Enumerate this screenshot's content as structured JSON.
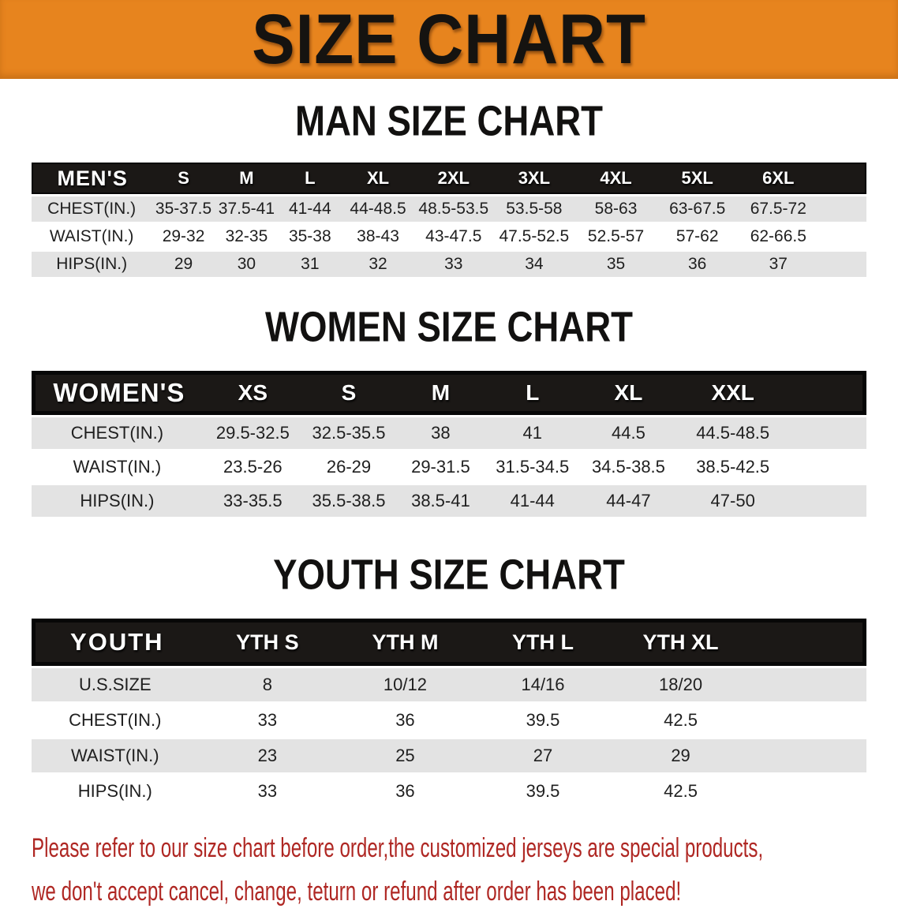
{
  "banner": {
    "title": "SIZE CHART"
  },
  "sections": [
    {
      "id": "men",
      "heading": "MAN SIZE CHART",
      "header_label": "MEN'S",
      "columns": [
        "S",
        "M",
        "L",
        "XL",
        "2XL",
        "3XL",
        "4XL",
        "5XL",
        "6XL"
      ],
      "rows": [
        {
          "label": "CHEST(IN.)",
          "values": [
            "35-37.5",
            "37.5-41",
            "41-44",
            "44-48.5",
            "48.5-53.5",
            "53.5-58",
            "58-63",
            "63-67.5",
            "67.5-72"
          ]
        },
        {
          "label": "WAIST(IN.)",
          "values": [
            "29-32",
            "32-35",
            "35-38",
            "38-43",
            "43-47.5",
            "47.5-52.5",
            "52.5-57",
            "57-62",
            "62-66.5"
          ]
        },
        {
          "label": "HIPS(IN.)",
          "values": [
            "29",
            "30",
            "31",
            "32",
            "33",
            "34",
            "35",
            "36",
            "37"
          ]
        }
      ]
    },
    {
      "id": "women",
      "heading": "WOMEN SIZE CHART",
      "header_label": "WOMEN'S",
      "columns": [
        "XS",
        "S",
        "M",
        "L",
        "XL",
        "XXL"
      ],
      "rows": [
        {
          "label": "CHEST(IN.)",
          "values": [
            "29.5-32.5",
            "32.5-35.5",
            "38",
            "41",
            "44.5",
            "44.5-48.5"
          ]
        },
        {
          "label": "WAIST(IN.)",
          "values": [
            "23.5-26",
            "26-29",
            "29-31.5",
            "31.5-34.5",
            "34.5-38.5",
            "38.5-42.5"
          ]
        },
        {
          "label": "HIPS(IN.)",
          "values": [
            "33-35.5",
            "35.5-38.5",
            "38.5-41",
            "41-44",
            "44-47",
            "47-50"
          ]
        }
      ]
    },
    {
      "id": "youth",
      "heading": "YOUTH SIZE CHART",
      "header_label": "YOUTH",
      "columns": [
        "YTH S",
        "YTH M",
        "YTH L",
        "YTH XL"
      ],
      "rows": [
        {
          "label": "U.S.SIZE",
          "values": [
            "8",
            "10/12",
            "14/16",
            "18/20"
          ]
        },
        {
          "label": "CHEST(IN.)",
          "values": [
            "33",
            "36",
            "39.5",
            "42.5"
          ]
        },
        {
          "label": "WAIST(IN.)",
          "values": [
            "23",
            "25",
            "27",
            "29"
          ]
        },
        {
          "label": "HIPS(IN.)",
          "values": [
            "33",
            "36",
            "39.5",
            "42.5"
          ]
        }
      ]
    }
  ],
  "disclaimer": {
    "line1": "Please refer to our size chart before order,the customized jerseys are special products,",
    "line2": "we don't accept cancel, change, teturn or refund after order has been placed!"
  },
  "colors": {
    "banner_bg": "#E7841E",
    "header_bar": "#1B1816",
    "row_stripe": "#E3E3E3",
    "disclaimer_red": "#AF2723",
    "title_text": "#151310"
  }
}
